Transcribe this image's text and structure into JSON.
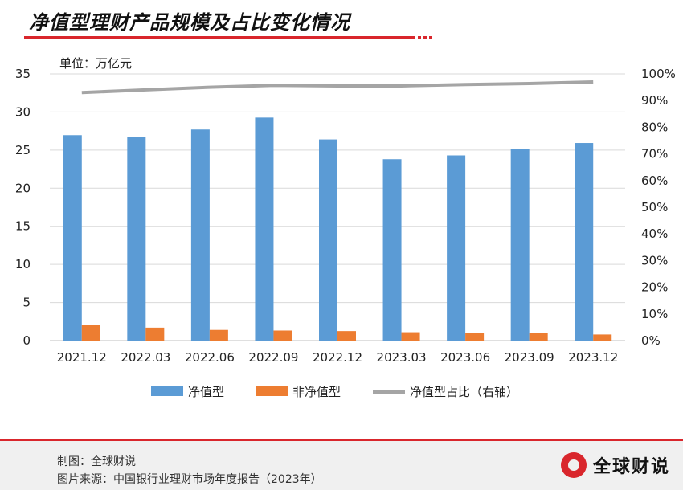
{
  "header": {
    "title": "净值型理财产品规模及占比变化情况",
    "unit_label": "单位：万亿元"
  },
  "footer": {
    "made_by": "制图：全球财说",
    "source": "图片来源：中国银行业理财市场年度报告（2023年）",
    "brand": "全球财说"
  },
  "colors": {
    "net_value": "#5b9bd5",
    "non_net_value": "#ed7d31",
    "share_line": "#a5a5a5",
    "accent": "#d9262c"
  },
  "chart_data": {
    "type": "bar",
    "categories": [
      "2021.12",
      "2022.03",
      "2022.06",
      "2022.09",
      "2022.12",
      "2023.03",
      "2023.06",
      "2023.09",
      "2023.12"
    ],
    "series": [
      {
        "name": "净值型",
        "type": "bar",
        "axis": "left",
        "values": [
          26.96,
          26.7,
          27.7,
          29.27,
          26.4,
          23.8,
          24.3,
          25.1,
          25.93
        ]
      },
      {
        "name": "非净值型",
        "type": "bar",
        "axis": "left",
        "values": [
          2.04,
          1.7,
          1.4,
          1.32,
          1.25,
          1.1,
          1.0,
          0.95,
          0.8
        ]
      },
      {
        "name": "净值型占比（右轴）",
        "type": "line",
        "axis": "right",
        "values": [
          0.93,
          0.94,
          0.95,
          0.957,
          0.955,
          0.955,
          0.96,
          0.964,
          0.97
        ]
      }
    ],
    "y_left": {
      "min": 0,
      "max": 35,
      "step": 5,
      "ticks": [
        "0",
        "5",
        "10",
        "15",
        "20",
        "25",
        "30",
        "35"
      ]
    },
    "y_right": {
      "min": 0,
      "max": 1,
      "step": 0.1,
      "ticks": [
        "0%",
        "10%",
        "20%",
        "30%",
        "40%",
        "50%",
        "60%",
        "70%",
        "80%",
        "90%",
        "100%"
      ]
    },
    "grid": true,
    "legend_position": "bottom"
  }
}
